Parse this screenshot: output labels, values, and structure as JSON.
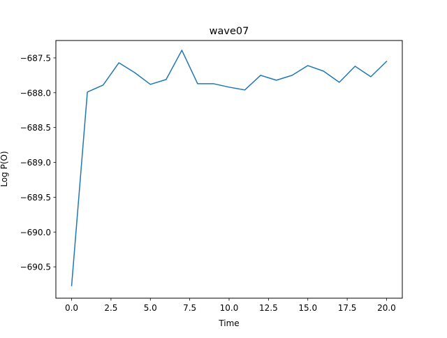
{
  "chart_data": {
    "type": "line",
    "title": "wave07",
    "xlabel": "Time",
    "ylabel": "Log P(O)",
    "xlim": [
      -1.0,
      21.0
    ],
    "ylim": [
      -690.95,
      -687.25
    ],
    "xticks": [
      0.0,
      2.5,
      5.0,
      7.5,
      10.0,
      12.5,
      15.0,
      17.5,
      20.0
    ],
    "xtick_labels": [
      "0.0",
      "2.5",
      "5.0",
      "7.5",
      "10.0",
      "12.5",
      "15.0",
      "17.5",
      "20.0"
    ],
    "yticks": [
      -687.5,
      -688.0,
      -688.5,
      -689.0,
      -689.5,
      -690.0,
      -690.5
    ],
    "ytick_labels": [
      "−687.5",
      "−688.0",
      "−688.5",
      "−689.0",
      "−689.5",
      "−690.0",
      "−690.5"
    ],
    "grid": false,
    "line_color": "#1f77b4",
    "series": [
      {
        "x": [
          0,
          1,
          2,
          3,
          4,
          5,
          6,
          7,
          8,
          9,
          10,
          11,
          12,
          13,
          14,
          15,
          16,
          17,
          18,
          19,
          20
        ],
        "values": [
          -690.77,
          -687.99,
          -687.89,
          -687.57,
          -687.71,
          -687.88,
          -687.81,
          -687.39,
          -687.87,
          -687.87,
          -687.92,
          -687.96,
          -687.75,
          -687.82,
          -687.75,
          -687.61,
          -687.69,
          -687.85,
          -687.62,
          -687.77,
          -687.55
        ]
      }
    ]
  }
}
